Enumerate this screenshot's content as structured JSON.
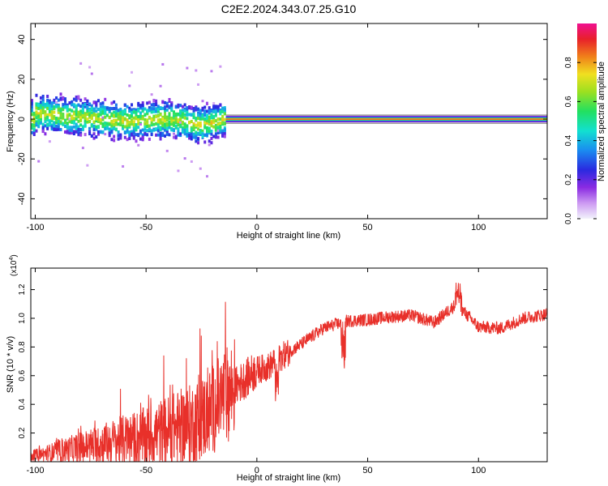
{
  "title": "C2E2.2024.343.07.25.G10",
  "chart_data": [
    {
      "type": "heatmap",
      "xlabel": "Height of straight line (km)",
      "ylabel": "Frequency (Hz)",
      "xlim": [
        -102,
        131
      ],
      "ylim": [
        -50,
        48
      ],
      "x_ticks": [
        -100,
        -50,
        0,
        50,
        100
      ],
      "y_ticks": [
        -40,
        -20,
        0,
        20,
        40
      ],
      "grid": false,
      "colorbar": {
        "label": "Normalized spectral amplitude",
        "range": [
          0,
          1
        ],
        "ticks": [
          0.0,
          0.2,
          0.4,
          0.6,
          0.8
        ],
        "tick_labels": [
          "0.0",
          "0.2",
          "0.4",
          "0.6",
          "0.8"
        ]
      },
      "ridge": {
        "description_points": [
          {
            "x": -100,
            "freq": 3
          },
          {
            "x": -80,
            "freq": 1
          },
          {
            "x": -60,
            "freq": -1
          },
          {
            "x": -40,
            "freq": 0
          },
          {
            "x": -25,
            "freq": -3
          },
          {
            "x": -14,
            "freq": 0
          },
          {
            "x": 0,
            "freq": 0
          },
          {
            "x": 131,
            "freq": 0
          }
        ],
        "strong_line_start": -14
      }
    },
    {
      "type": "line",
      "xlabel": "Height of straight line (km)",
      "ylabel": "SNR (10 * v/v)",
      "scale_label": "(x10",
      "scale_exp": "4",
      "scale_close": ")",
      "xlim": [
        -102,
        131
      ],
      "ylim": [
        0.0,
        1.35
      ],
      "x_ticks": [
        -100,
        -50,
        0,
        50,
        100
      ],
      "y_ticks": [
        0.2,
        0.4,
        0.6,
        0.8,
        1.0,
        1.2
      ],
      "y_tick_labels": [
        "0.2",
        "0.4",
        "0.6",
        "0.8",
        "1.0",
        "1.2"
      ],
      "color": "#e8302a",
      "trend": {
        "x": [
          -102,
          -90,
          -75,
          -60,
          -50,
          -40,
          -30,
          -22,
          -15,
          -10,
          -5,
          0,
          5,
          10,
          15,
          20,
          30,
          40,
          50,
          60,
          70,
          80,
          90,
          100,
          110,
          120,
          131
        ],
        "y": [
          0.04,
          0.07,
          0.11,
          0.15,
          0.17,
          0.22,
          0.26,
          0.33,
          0.45,
          0.52,
          0.58,
          0.64,
          0.66,
          0.72,
          0.77,
          0.82,
          0.93,
          0.98,
          0.99,
          1.01,
          1.02,
          0.97,
          1.1,
          0.94,
          0.93,
          1.0,
          1.03
        ]
      }
    }
  ]
}
